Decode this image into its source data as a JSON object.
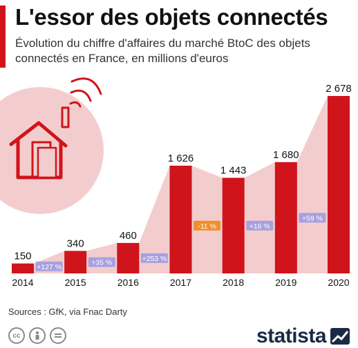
{
  "header": {
    "title": "L'essor des objets connectés",
    "subtitle": "Évolution du chiffre d'affaires du marché BtoC des objets connectés en France, en millions d'euros"
  },
  "footer": {
    "source": "Sources : GfK, via Fnac Darty",
    "brand": "statista",
    "license_icons": [
      "cc-icon",
      "by-icon",
      "nd-icon"
    ]
  },
  "colors": {
    "bar": "#d0141c",
    "area": "#f3cdcd",
    "growth_positive": "#a89fe0",
    "growth_negative": "#ef8f2a",
    "accent": "#d0141c"
  },
  "chart_data": {
    "type": "bar",
    "categories": [
      "2014",
      "2015",
      "2016",
      "2017",
      "2018",
      "2019",
      "2020"
    ],
    "values": [
      150,
      340,
      460,
      1626,
      1443,
      1680,
      2678
    ],
    "value_labels": [
      "150",
      "340",
      "460",
      "1 626",
      "1 443",
      "1 680",
      "2 678"
    ],
    "growth_labels": [
      "+127 %",
      "+35 %",
      "+253 %",
      "-11 %",
      "+16 %",
      "+59 %"
    ],
    "growth_signs": [
      "positive",
      "positive",
      "positive",
      "negative",
      "positive",
      "positive"
    ],
    "ylim": [
      0,
      2678
    ],
    "grid": false,
    "legend": "none",
    "illustration": "connected-house-icon"
  }
}
